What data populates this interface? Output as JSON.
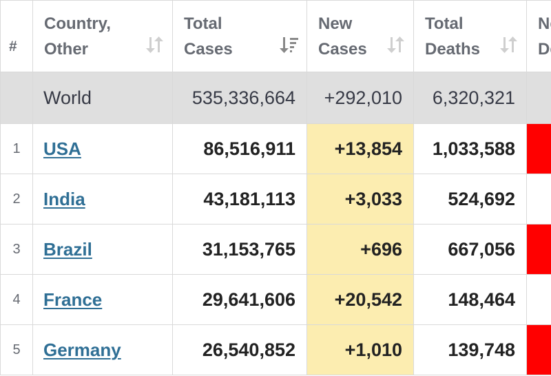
{
  "headers": {
    "rank": "#",
    "country": "Country,\nOther",
    "total_cases": "Total\nCases",
    "new_cases": "New\nCases",
    "total_deaths": "Total\nDeaths",
    "new_deaths": "New\nDeaths"
  },
  "world": {
    "country": "World",
    "total_cases": "535,336,664",
    "new_cases": "+292,010",
    "total_deaths": "6,320,321"
  },
  "rows": [
    {
      "rank": "1",
      "country": "USA",
      "total_cases": "86,516,911",
      "new_cases": "+13,854",
      "total_deaths": "1,033,588",
      "new_deaths_highlight": true
    },
    {
      "rank": "2",
      "country": "India",
      "total_cases": "43,181,113",
      "new_cases": "+3,033",
      "total_deaths": "524,692",
      "new_deaths_highlight": false
    },
    {
      "rank": "3",
      "country": "Brazil",
      "total_cases": "31,153,765",
      "new_cases": "+696",
      "total_deaths": "667,056",
      "new_deaths_highlight": true
    },
    {
      "rank": "4",
      "country": "France",
      "total_cases": "29,641,606",
      "new_cases": "+20,542",
      "total_deaths": "148,464",
      "new_deaths_highlight": false
    },
    {
      "rank": "5",
      "country": "Germany",
      "total_cases": "26,540,852",
      "new_cases": "+1,010",
      "total_deaths": "139,748",
      "new_deaths_highlight": true
    }
  ],
  "colors": {
    "new_cases_bg": "#fcedb0",
    "new_deaths_bg": "#ff0000",
    "world_row_bg": "#dfdfdf",
    "link": "#2f6f95"
  },
  "icons": {
    "sort": "sort-arrows-icon",
    "sort_active": "sort-descending-icon"
  }
}
